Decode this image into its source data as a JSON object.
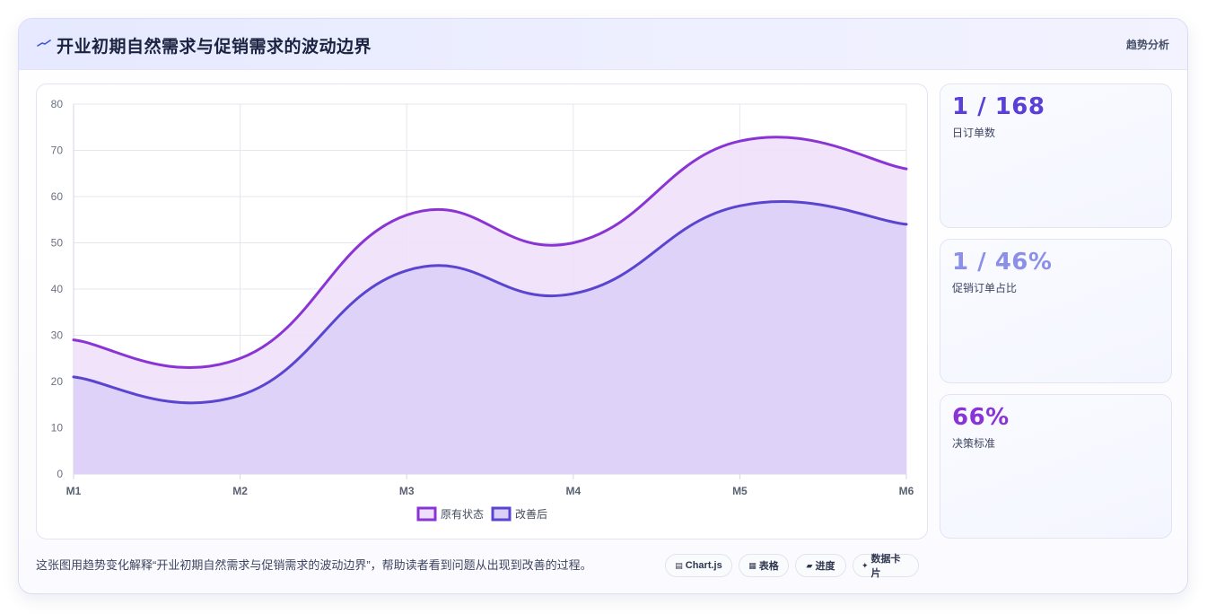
{
  "header": {
    "title": "开业初期自然需求与促销需求的波动边界",
    "tag": "趋势分析"
  },
  "stats": [
    {
      "value": "1 / 168",
      "label": "日订单数",
      "color": "#5b3fd6"
    },
    {
      "value": "1 / 46%",
      "label": "促销订单占比",
      "color": "#8b8fe8"
    },
    {
      "value": "66%",
      "label": "决策标准",
      "color": "#8a34d6"
    }
  ],
  "footer": {
    "text": "这张图用趋势变化解释“开业初期自然需求与促销需求的波动边界”，帮助读者看到问题从出现到改善的过程。"
  },
  "chips": [
    {
      "icon": "chart-icon",
      "glyph": "▤",
      "label": "Chart.js"
    },
    {
      "icon": "table-icon",
      "glyph": "▦",
      "label": "表格"
    },
    {
      "icon": "progress-icon",
      "glyph": "▰",
      "label": "进度"
    },
    {
      "icon": "card-icon",
      "glyph": "✦",
      "label": "数据卡片"
    }
  ],
  "chart_data": {
    "type": "area",
    "categories": [
      "M1",
      "M2",
      "M3",
      "M4",
      "M5",
      "M6"
    ],
    "y_ticks": [
      0,
      10,
      20,
      30,
      40,
      50,
      60,
      70,
      80
    ],
    "ylim": [
      0,
      80
    ],
    "grid": true,
    "legend_position": "bottom",
    "series": [
      {
        "name": "原有状态",
        "values": [
          29,
          25,
          56,
          50,
          72,
          66
        ],
        "color": "#8a34d6",
        "fill": "#eee0fa"
      },
      {
        "name": "改善后",
        "values": [
          21,
          17,
          44,
          39,
          58,
          54
        ],
        "color": "#5a45d1",
        "fill": "#dccff7"
      }
    ]
  }
}
